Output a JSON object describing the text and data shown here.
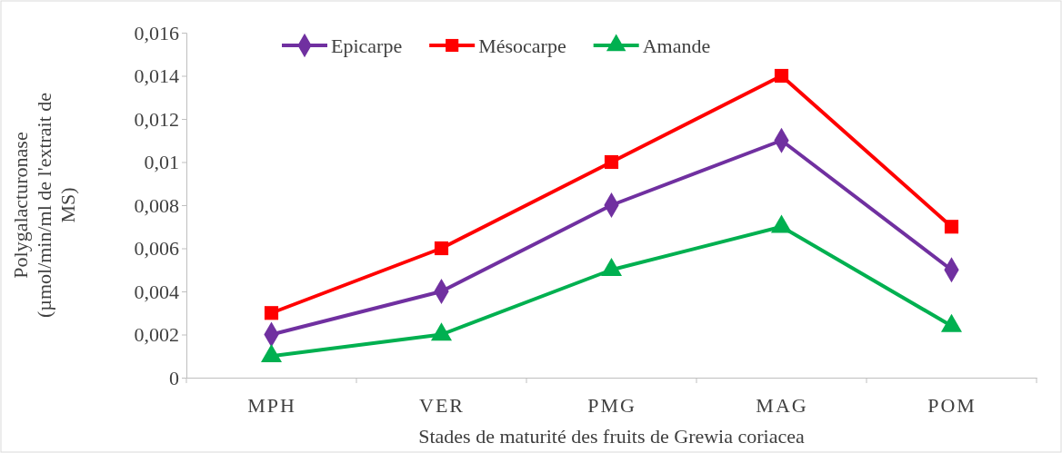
{
  "chart_data": {
    "type": "line",
    "xlabel": "Stades de maturité des fruits de Grewia coriacea",
    "ylabel": "Polygalacturonase (µmol/min/ml de l'extrait de MS)",
    "categories": [
      "MPH",
      "VER",
      "PMG",
      "MAG",
      "POM"
    ],
    "series": [
      {
        "name": "Epicarpe",
        "color": "#7030a0",
        "marker": "diamond",
        "values": [
          0.002,
          0.004,
          0.008,
          0.011,
          0.005
        ]
      },
      {
        "name": "Mésocarpe",
        "color": "#ff0000",
        "marker": "square",
        "values": [
          0.003,
          0.006,
          0.01,
          0.014,
          0.007
        ]
      },
      {
        "name": "Amande",
        "color": "#00b050",
        "marker": "triangle",
        "values": [
          0.001,
          0.002,
          0.005,
          0.007,
          0.0024
        ]
      }
    ],
    "ylim": [
      0,
      0.016
    ],
    "yticks": [
      0,
      {
        "value": 0.002,
        "label": "0,002"
      },
      {
        "value": 0.004,
        "label": "0,004"
      },
      {
        "value": 0.006,
        "label": "0,006"
      },
      {
        "value": 0.008,
        "label": "0,008"
      },
      {
        "value": 0.01,
        "label": "0,01"
      },
      {
        "value": 0.012,
        "label": "0,012"
      },
      {
        "value": 0.014,
        "label": "0,014"
      },
      {
        "value": 0.016,
        "label": "0,016"
      }
    ],
    "legend": "top",
    "grid": false,
    "line_style": "solid"
  }
}
